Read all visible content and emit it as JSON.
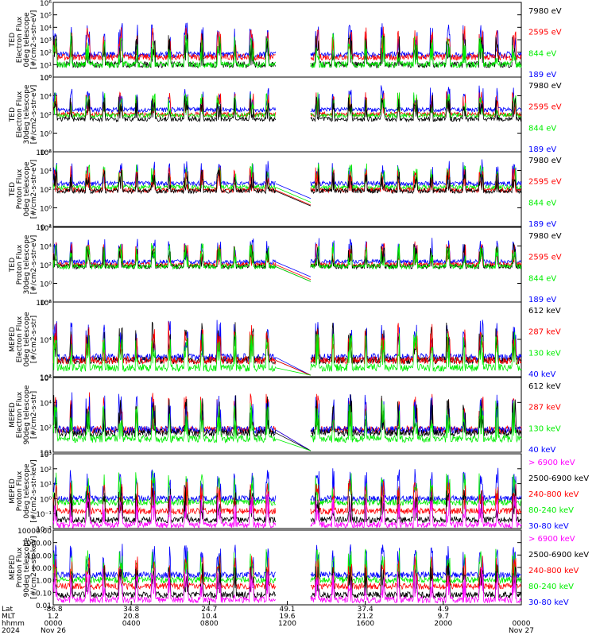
{
  "colors": {
    "blue": "#0000ff",
    "red": "#ff0000",
    "green": "#00ee00",
    "black": "#000000",
    "magenta": "#ff00ff"
  },
  "chart_data": [
    {
      "type": "line",
      "ylabel": [
        "TED",
        "Electron Flux",
        "0deg telescope",
        "[#/cm2-s-str-eV]"
      ],
      "ylim": [
        1,
        1000000
      ],
      "log": true,
      "ticks": [
        "10⁰",
        "10¹",
        "10²",
        "10³",
        "10⁴",
        "10⁵",
        "10⁶"
      ],
      "series": [
        {
          "name": "7980 eV",
          "color": "black",
          "level": 1.0
        },
        {
          "name": "2595 eV",
          "color": "red",
          "level": 1.6
        },
        {
          "name": "844 eV",
          "color": "green",
          "level": 1.0
        },
        {
          "name": "189 eV",
          "color": "blue",
          "level": 1.8
        }
      ]
    },
    {
      "type": "line",
      "ylabel": [
        "TED",
        "Electron Flux",
        "30deg telescope",
        "[#/cm2-s-str-eV]"
      ],
      "ylim": [
        0.01,
        1000000
      ],
      "log": true,
      "ticks": [
        "10⁻²",
        "10⁰",
        "10²",
        "10⁴",
        "10⁶"
      ],
      "series": [
        {
          "name": "7980 eV",
          "color": "black",
          "level": 1.5
        },
        {
          "name": "2595 eV",
          "color": "red",
          "level": 2.0
        },
        {
          "name": "844 eV",
          "color": "green",
          "level": 1.9
        },
        {
          "name": "189 eV",
          "color": "blue",
          "level": 2.5
        }
      ]
    },
    {
      "type": "line",
      "ylabel": [
        "TED",
        "Proton Flux",
        "0deg telescope",
        "[#/cm2-s-str-eV]"
      ],
      "ylim": [
        0.01,
        1000000
      ],
      "log": true,
      "ticks": [
        "10⁻²",
        "10⁰",
        "10²",
        "10⁴",
        "10⁶"
      ],
      "series": [
        {
          "name": "7980 eV",
          "color": "black",
          "level": 1.8
        },
        {
          "name": "2595 eV",
          "color": "red",
          "level": 1.9
        },
        {
          "name": "844 eV",
          "color": "green",
          "level": 2.2
        },
        {
          "name": "189 eV",
          "color": "blue",
          "level": 2.6
        }
      ]
    },
    {
      "type": "line",
      "ylabel": [
        "TED",
        "Proton Flux",
        "30deg telescope",
        "[#/cm2-s-str-eV]"
      ],
      "ylim": [
        0.01,
        1000000
      ],
      "log": true,
      "ticks": [
        "10⁻²",
        "10⁰",
        "10²",
        "10⁴",
        "10⁶"
      ],
      "series": [
        {
          "name": "7980 eV",
          "color": "black",
          "level": 1.8
        },
        {
          "name": "2595 eV",
          "color": "red",
          "level": 2.0
        },
        {
          "name": "844 eV",
          "color": "green",
          "level": 1.8
        },
        {
          "name": "189 eV",
          "color": "blue",
          "level": 2.3
        }
      ]
    },
    {
      "type": "line",
      "ylabel": [
        "MEPED",
        "Electron Flux",
        "0deg telescope",
        "[#/cm2-s-str]"
      ],
      "ylim": [
        10,
        1000000
      ],
      "log": true,
      "ticks": [
        "10²",
        "10⁴",
        "10⁶"
      ],
      "series": [
        {
          "name": "612 keV",
          "color": "black",
          "level": 2.1
        },
        {
          "name": "287 keV",
          "color": "red",
          "level": 2.1
        },
        {
          "name": "130 keV",
          "color": "green",
          "level": 1.6
        },
        {
          "name": "40 keV",
          "color": "blue",
          "level": 2.3
        }
      ]
    },
    {
      "type": "line",
      "ylabel": [
        "MEPED",
        "Electron Flux",
        "90deg telescope",
        "[#/cm2-s-str]"
      ],
      "ylim": [
        10,
        1000000
      ],
      "log": true,
      "ticks": [
        "10¹",
        "10²",
        "10⁴",
        "10⁶"
      ],
      "series": [
        {
          "name": "612 keV",
          "color": "black",
          "level": 2.3
        },
        {
          "name": "287 keV",
          "color": "red",
          "level": 2.5
        },
        {
          "name": "130 keV",
          "color": "green",
          "level": 1.9
        },
        {
          "name": "40 keV",
          "color": "blue",
          "level": 2.5
        }
      ]
    },
    {
      "type": "line",
      "ylabel": [
        "MEPED",
        "Proton Flux",
        "0deg telescope",
        "[#/cm2-s-str-keV]"
      ],
      "ylim": [
        0.01,
        10000
      ],
      "log": true,
      "ticks": [
        "10⁻²",
        "10⁻¹",
        "10⁰",
        "10¹",
        "10²",
        "10³"
      ],
      "series": [
        {
          "name": "> 6900 keV",
          "color": "magenta",
          "level": -1.7
        },
        {
          "name": "2500-6900 keV",
          "color": "black",
          "level": -1.3
        },
        {
          "name": "240-800 keV",
          "color": "red",
          "level": -0.6
        },
        {
          "name": "80-240 keV",
          "color": "green",
          "level": 0.1
        },
        {
          "name": "30-80 keV",
          "color": "blue",
          "level": 0.4
        }
      ]
    },
    {
      "type": "line",
      "ylabel": [
        "MEPED",
        "Proton Flux",
        "90deg telescope",
        "[#/cm2-s-str-keV]"
      ],
      "ylim": [
        0.01,
        10000
      ],
      "log": true,
      "ticks": [
        "0.01",
        "0.10",
        "1.00",
        "10.00",
        "100.00",
        "1000.00",
        "10000.00"
      ],
      "series": [
        {
          "name": "> 6900 keV",
          "color": "magenta",
          "level": -1.6
        },
        {
          "name": "2500-6900 keV",
          "color": "black",
          "level": -1.2
        },
        {
          "name": "240-800 keV",
          "color": "red",
          "level": -0.5
        },
        {
          "name": "80-240 keV",
          "color": "green",
          "level": 0.0
        },
        {
          "name": "30-80 keV",
          "color": "blue",
          "level": 0.4
        }
      ]
    }
  ],
  "data_gap": {
    "start_hour": 11.4,
    "end_hour": 13.2
  },
  "x_axis": {
    "row_labels": [
      "Lat",
      "MLT",
      "hhmm",
      "2024"
    ],
    "ticks": [
      {
        "hour": 0,
        "lat": "-86.8",
        "mlt": "1.2",
        "hhmm": "0000",
        "date": "Nov 26"
      },
      {
        "hour": 4,
        "lat": "34.8",
        "mlt": "20.8",
        "hhmm": "0400",
        "date": ""
      },
      {
        "hour": 8,
        "lat": "24.7",
        "mlt": "10.4",
        "hhmm": "0800",
        "date": ""
      },
      {
        "hour": 12,
        "lat": "49.1",
        "mlt": "19.6",
        "hhmm": "1200",
        "date": ""
      },
      {
        "hour": 16,
        "lat": "37.4",
        "mlt": "21.2",
        "hhmm": "1600",
        "date": ""
      },
      {
        "hour": 20,
        "lat": "4.9",
        "mlt": "9.7",
        "hhmm": "2000",
        "date": ""
      },
      {
        "hour": 24,
        "lat": "",
        "mlt": "",
        "hhmm": "0000",
        "date": "Nov 27"
      }
    ]
  }
}
